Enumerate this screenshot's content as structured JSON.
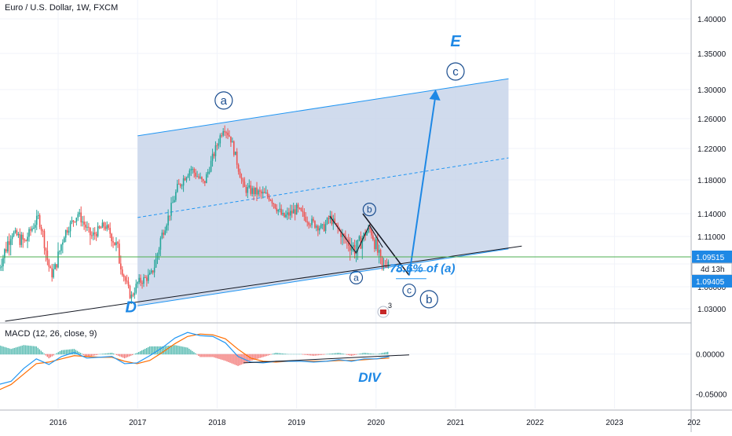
{
  "header": {
    "title": "Euro / U.S. Dollar, 1W, FXCM"
  },
  "macd_header": {
    "title": "MACD (12, 26, close, 9)"
  },
  "colors": {
    "up": "#26a69a",
    "down": "#ef5350",
    "channel_fill": "#c8d5ea",
    "channel_line": "#2196f3",
    "annotation_blue": "#1e88e5",
    "wave_circle": "#1a4d8f",
    "price_line": "#4caf50",
    "price_badge": "#1e88e5",
    "macd_line": "#2196f3",
    "signal_line": "#ff6d00",
    "grid": "#f0f3fa",
    "axis_text": "#131722"
  },
  "chart_data": [
    {
      "type": "candlestick",
      "title": "Euro / U.S. Dollar, 1W, FXCM",
      "x_axis": {
        "type": "time",
        "tick_labels": [
          "2016",
          "2017",
          "2018",
          "2019",
          "2020",
          "2021",
          "2022",
          "2023",
          "202"
        ]
      },
      "y_axis": {
        "type": "linear",
        "ylim": [
          1.005,
          1.425
        ],
        "tick_labels": [
          "1.03000",
          "1.06000",
          "1.09000",
          "1.11000",
          "1.14000",
          "1.18000",
          "1.22000",
          "1.26000",
          "1.30000",
          "1.35000",
          "1.40000"
        ]
      },
      "grid": true,
      "price_path": [
        [
          "2015-04",
          1.085
        ],
        [
          "2015-06",
          1.115
        ],
        [
          "2015-08",
          1.105
        ],
        [
          "2015-10",
          1.135
        ],
        [
          "2015-12",
          1.075
        ],
        [
          "2016-02",
          1.115
        ],
        [
          "2016-04",
          1.14
        ],
        [
          "2016-06",
          1.11
        ],
        [
          "2016-08",
          1.125
        ],
        [
          "2016-10",
          1.1
        ],
        [
          "2016-12",
          1.045
        ],
        [
          "2017-01",
          1.065
        ],
        [
          "2017-03",
          1.075
        ],
        [
          "2017-05",
          1.12
        ],
        [
          "2017-07",
          1.17
        ],
        [
          "2017-09",
          1.195
        ],
        [
          "2017-11",
          1.175
        ],
        [
          "2018-02",
          1.25
        ],
        [
          "2018-03",
          1.235
        ],
        [
          "2018-05",
          1.17
        ],
        [
          "2018-07",
          1.165
        ],
        [
          "2018-09",
          1.16
        ],
        [
          "2018-11",
          1.135
        ],
        [
          "2019-01",
          1.145
        ],
        [
          "2019-03",
          1.13
        ],
        [
          "2019-05",
          1.12
        ],
        [
          "2019-06",
          1.135
        ],
        [
          "2019-08",
          1.11
        ],
        [
          "2019-10",
          1.1
        ],
        [
          "2019-12",
          1.12
        ],
        [
          "2020-02",
          1.085
        ],
        [
          "2020-03",
          1.095
        ]
      ],
      "last_price": "1.09515",
      "countdown": "4d 13h",
      "level_price": "1.09405",
      "channel": {
        "upper": [
          [
            "2017-01",
            1.237
          ],
          [
            "2021-09",
            1.315
          ]
        ],
        "lower": [
          [
            "2017-01",
            1.034
          ],
          [
            "2021-09",
            1.101
          ]
        ],
        "mid": [
          [
            "2017-01",
            1.135
          ],
          [
            "2021-09",
            1.208
          ]
        ],
        "trendline": [
          [
            "2015-05",
            1.013
          ],
          [
            "2021-11",
            1.103
          ]
        ]
      },
      "projection": [
        [
          "2019-11",
          1.14
        ],
        [
          "2020-06",
          1.075
        ],
        [
          "2020-10",
          1.3
        ]
      ],
      "annotations": [
        {
          "text": "a",
          "style": "circle",
          "at": [
            "2018-02",
            1.285
          ]
        },
        {
          "text": "D",
          "style": "bold-italic",
          "at": [
            "2016-12",
            1.025
          ]
        },
        {
          "text": "E",
          "style": "bold-italic",
          "at": [
            "2021-01",
            1.36
          ]
        },
        {
          "text": "c",
          "style": "circle",
          "at": [
            "2021-01",
            1.325
          ]
        },
        {
          "text": "b",
          "style": "circle-small",
          "at": [
            "2019-12",
            1.145
          ]
        },
        {
          "text": "a",
          "style": "circle-small",
          "at": [
            "2019-10",
            1.072
          ]
        },
        {
          "text": "c",
          "style": "circle-small",
          "at": [
            "2020-06",
            1.055
          ]
        },
        {
          "text": "b",
          "style": "circle",
          "at": [
            "2020-09",
            1.043
          ]
        },
        {
          "text": "78.6% of (a)",
          "style": "bold-italic",
          "at": [
            "2020-08",
            1.079
          ]
        }
      ],
      "event_badge": {
        "count": "3"
      }
    },
    {
      "type": "line",
      "title": "MACD (12, 26, close, 9)",
      "y_axis": {
        "ylim": [
          -0.065,
          0.035
        ],
        "tick_labels": [
          "0.00000",
          "-0.05000"
        ]
      },
      "series": [
        {
          "name": "MACD",
          "values": [
            -0.038,
            -0.034,
            -0.018,
            -0.006,
            -0.013,
            -0.003,
            0.002,
            -0.005,
            -0.004,
            -0.003,
            -0.012,
            -0.011,
            -0.002,
            0.008,
            0.02,
            0.027,
            0.023,
            0.022,
            0.014,
            -0.003,
            -0.01,
            -0.011,
            -0.009,
            -0.009,
            -0.009,
            -0.01,
            -0.009,
            -0.007,
            -0.009,
            -0.006,
            -0.006,
            -0.003
          ]
        },
        {
          "name": "Signal",
          "values": [
            -0.045,
            -0.038,
            -0.025,
            -0.012,
            -0.01,
            -0.006,
            -0.002,
            -0.003,
            -0.004,
            -0.004,
            -0.009,
            -0.012,
            -0.008,
            0.002,
            0.013,
            0.022,
            0.025,
            0.024,
            0.019,
            0.006,
            -0.005,
            -0.009,
            -0.01,
            -0.009,
            -0.009,
            -0.009,
            -0.009,
            -0.008,
            -0.008,
            -0.007,
            -0.006,
            -0.005
          ]
        }
      ],
      "divergence_line": [
        [
          "2018-05",
          -0.011
        ],
        [
          "2020-06",
          -0.001
        ]
      ],
      "annotations": [
        {
          "text": "DIV",
          "style": "bold-italic"
        }
      ]
    }
  ]
}
